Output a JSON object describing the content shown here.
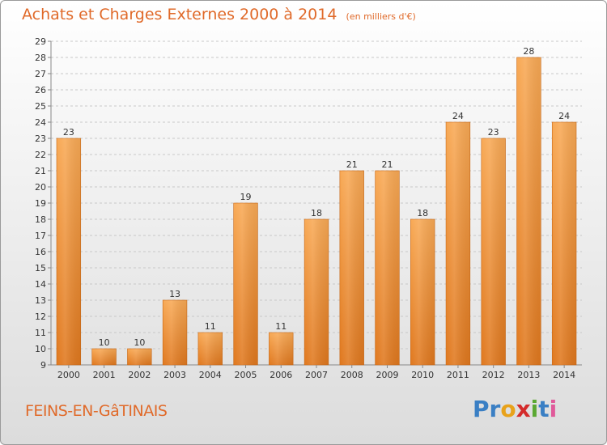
{
  "header": {
    "title": "Achats et Charges Externes 2000 à 2014",
    "unit": "(en milliers d'€)"
  },
  "footer": {
    "commune": "FEINS-EN-GâTINAIS",
    "logo_letters": [
      {
        "ch": "P",
        "color": "#3a7fc4"
      },
      {
        "ch": "r",
        "color": "#3a7fc4"
      },
      {
        "ch": "o",
        "color": "#e8a21a"
      },
      {
        "ch": "x",
        "color": "#d42b2b"
      },
      {
        "ch": "i",
        "color": "#5aa832"
      },
      {
        "ch": "t",
        "color": "#3a7fc4"
      },
      {
        "ch": "i",
        "color": "#e05a9a"
      }
    ]
  },
  "colors": {
    "bar_light": "#f8a955",
    "bar_dark": "#e0781e",
    "title": "#e06a2a",
    "grid": "#c8c8c8",
    "axis_text": "#333333"
  },
  "chart_data": {
    "type": "bar",
    "title": "Achats et Charges Externes 2000 à 2014",
    "subtitle": "(en milliers d'€)",
    "categories": [
      "2000",
      "2001",
      "2002",
      "2003",
      "2004",
      "2005",
      "2006",
      "2007",
      "2008",
      "2009",
      "2010",
      "2011",
      "2012",
      "2013",
      "2014"
    ],
    "values": [
      23,
      10,
      10,
      13,
      11,
      19,
      11,
      18,
      21,
      21,
      18,
      24,
      23,
      28,
      24
    ],
    "ylim": [
      9,
      29
    ],
    "yticks": [
      9,
      10,
      11,
      12,
      13,
      14,
      15,
      16,
      17,
      18,
      19,
      20,
      21,
      22,
      23,
      24,
      25,
      26,
      27,
      28,
      29
    ],
    "grid": "horizontal dashed",
    "data_labels": true,
    "legend": "none"
  }
}
